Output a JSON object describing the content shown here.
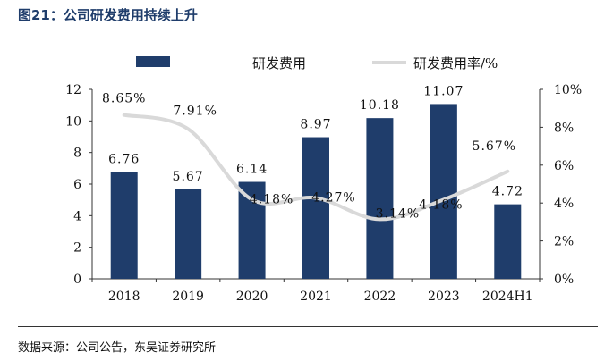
{
  "header": {
    "title": "图21：公司研发费用持续上升"
  },
  "footer": {
    "source": "数据来源：公司公告，东吴证券研究所"
  },
  "colors": {
    "bar": "#1f3d6b",
    "line": "#d9d9d9",
    "text": "#111111"
  },
  "chart_data": {
    "type": "bar",
    "categories": [
      "2018",
      "2019",
      "2020",
      "2021",
      "2022",
      "2023",
      "2024H1"
    ],
    "series": [
      {
        "name": "研发费用",
        "type": "bar",
        "axis": "left",
        "values": [
          6.76,
          5.67,
          6.14,
          8.97,
          10.18,
          11.07,
          4.72
        ],
        "labels": [
          "6.76",
          "5.67",
          "6.14",
          "8.97",
          "10.18",
          "11.07",
          "4.72"
        ]
      },
      {
        "name": "研发费用率/%",
        "type": "line",
        "axis": "right",
        "smooth": true,
        "values": [
          8.65,
          7.91,
          4.18,
          4.27,
          3.14,
          4.18,
          5.67
        ],
        "labels": [
          "8.65%",
          "7.91%",
          "4.18%",
          "4.27%",
          "3.14%",
          "4.18%",
          "5.67%"
        ]
      }
    ],
    "left_axis": {
      "ylim": [
        0,
        12
      ],
      "ticks": [
        "0",
        "2",
        "4",
        "6",
        "8",
        "10",
        "12"
      ]
    },
    "right_axis": {
      "ylim": [
        0,
        10
      ],
      "ticks": [
        "0%",
        "2%",
        "4%",
        "6%",
        "8%",
        "10%"
      ]
    },
    "legend": {
      "position": "top"
    },
    "grid": false
  }
}
